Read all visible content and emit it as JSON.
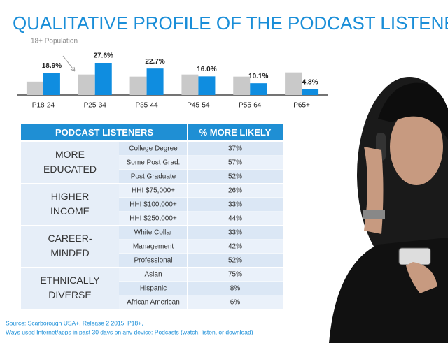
{
  "chart_data": {
    "type": "bar",
    "title": "QUALITATIVE PROFILE OF THE PODCAST LISTENER",
    "annotation": "18+ Population",
    "categories": [
      "P18-24",
      "P25-34",
      "P35-44",
      "P45-54",
      "P55-64",
      "P65+"
    ],
    "series": [
      {
        "name": "18+ Population",
        "color": "#c9c9c9",
        "values": [
          11.5,
          17.6,
          15.8,
          17.6,
          15.8,
          19.4
        ]
      },
      {
        "color": "#0f8de0",
        "values": [
          18.9,
          27.6,
          22.7,
          16.0,
          10.1,
          4.8
        ],
        "value_labels": [
          "18.9%",
          "27.6%",
          "22.7%",
          "16.0%",
          "10.1%",
          "4.8%"
        ]
      }
    ],
    "ylim": [
      0,
      30
    ]
  },
  "table": {
    "header": [
      "PODCAST LISTENERS",
      "% MORE LIKELY"
    ],
    "groups": [
      {
        "label": [
          "MORE",
          "EDUCATED"
        ],
        "rows": [
          [
            "College Degree",
            "37%"
          ],
          [
            "Some Post Grad.",
            "57%"
          ],
          [
            "Post Graduate",
            "52%"
          ]
        ]
      },
      {
        "label": [
          "HIGHER",
          "INCOME"
        ],
        "rows": [
          [
            "HHI $75,000+",
            "26%"
          ],
          [
            "HHI $100,000+",
            "33%"
          ],
          [
            "HHI $250,000+",
            "44%"
          ]
        ]
      },
      {
        "label": [
          "CAREER-",
          "MINDED"
        ],
        "rows": [
          [
            "White Collar",
            "33%"
          ],
          [
            "Management",
            "42%"
          ],
          [
            "Professional",
            "52%"
          ]
        ]
      },
      {
        "label": [
          "ETHNICALLY",
          "DIVERSE"
        ],
        "rows": [
          [
            "Asian",
            "75%"
          ],
          [
            "Hispanic",
            "8%"
          ],
          [
            "African American",
            "6%"
          ]
        ]
      }
    ]
  },
  "source": [
    "Source:  Scarborough USA+, Release 2 2015, P18+,",
    "Ways used Internet/apps in past 30 days on any device: Podcasts (watch, listen, or download)"
  ]
}
